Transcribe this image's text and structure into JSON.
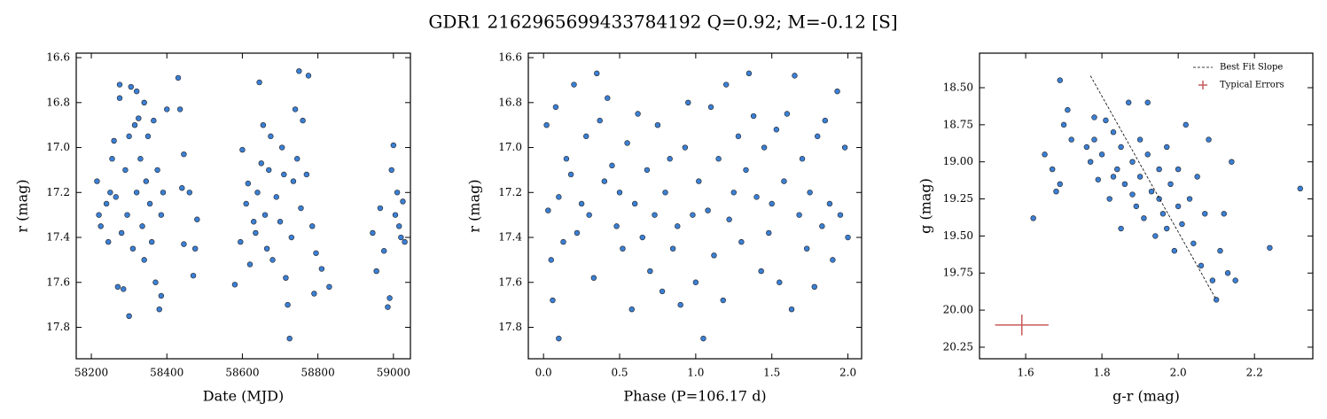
{
  "title": "GDR1 2162965699433784192  Q=0.92; M=-0.12 [S]",
  "chart_data": [
    {
      "type": "scatter",
      "xlabel": "Date (MJD)",
      "ylabel": "r (mag)",
      "color": "#3b7fd4",
      "xlim": [
        58160,
        59045
      ],
      "ylim": [
        17.94,
        16.58
      ],
      "xticks": [
        58200,
        58400,
        58600,
        58800,
        59000
      ],
      "yticks": [
        16.6,
        16.8,
        {
          "value": 17.0,
          "label": "17.0"
        },
        17.2,
        17.4,
        17.6,
        17.8
      ],
      "x": [
        58215,
        58220,
        58225,
        58240,
        58245,
        58250,
        58255,
        58260,
        58265,
        58270,
        58275,
        58275,
        58280,
        58285,
        58290,
        58295,
        58300,
        58300,
        58305,
        58310,
        58315,
        58320,
        58320,
        58325,
        58330,
        58335,
        58340,
        58340,
        58345,
        58350,
        58355,
        58360,
        58365,
        58370,
        58375,
        58380,
        58385,
        58385,
        58390,
        58400,
        58430,
        58435,
        58440,
        58445,
        58445,
        58460,
        58470,
        58475,
        58480,
        58580,
        58595,
        58600,
        58610,
        58615,
        58620,
        58630,
        58635,
        58640,
        58645,
        58650,
        58655,
        58660,
        58665,
        58670,
        58675,
        58680,
        58690,
        58700,
        58705,
        58710,
        58715,
        58720,
        58725,
        58730,
        58735,
        58740,
        58745,
        58750,
        58755,
        58760,
        58770,
        58775,
        58785,
        58790,
        58795,
        58810,
        58830,
        58945,
        58955,
        58965,
        58975,
        58985,
        58990,
        58995,
        59000,
        59005,
        59010,
        59015,
        59020,
        59025,
        59030
      ],
      "values": [
        17.15,
        17.3,
        17.35,
        17.25,
        17.42,
        17.2,
        17.05,
        16.97,
        17.22,
        17.62,
        16.78,
        16.72,
        17.38,
        17.63,
        17.1,
        17.3,
        17.75,
        16.95,
        16.73,
        17.45,
        16.9,
        16.75,
        17.2,
        16.87,
        17.05,
        17.35,
        16.8,
        17.5,
        17.15,
        16.95,
        17.25,
        17.42,
        16.88,
        17.6,
        17.1,
        17.72,
        17.66,
        17.3,
        17.2,
        16.83,
        16.69,
        16.83,
        17.18,
        17.03,
        17.43,
        17.2,
        17.57,
        17.45,
        17.32,
        17.61,
        17.42,
        17.01,
        17.25,
        17.16,
        17.52,
        17.33,
        17.38,
        17.2,
        16.71,
        17.07,
        16.9,
        17.3,
        17.45,
        17.1,
        16.95,
        17.5,
        17.22,
        17.33,
        17.0,
        17.12,
        17.58,
        17.7,
        17.85,
        17.4,
        17.15,
        16.83,
        17.05,
        16.66,
        17.27,
        16.88,
        17.12,
        16.68,
        17.35,
        17.65,
        17.47,
        17.54,
        17.62,
        17.38,
        17.55,
        17.27,
        17.46,
        17.71,
        17.67,
        17.1,
        16.99,
        17.3,
        17.2,
        17.35,
        17.4,
        17.24,
        17.42
      ]
    },
    {
      "type": "scatter",
      "xlabel": "Phase (P=106.17 d)",
      "ylabel": "r (mag)",
      "color": "#3b7fd4",
      "xlim": [
        -0.1,
        2.09
      ],
      "ylim": [
        17.94,
        16.58
      ],
      "xticks": [
        {
          "value": 0,
          "label": "0.0"
        },
        0.5,
        {
          "value": 1,
          "label": "1.0"
        },
        1.5,
        {
          "value": 2,
          "label": "2.0"
        }
      ],
      "yticks": [
        16.6,
        16.8,
        {
          "value": 17.0,
          "label": "17.0"
        },
        17.2,
        17.4,
        17.6,
        17.8
      ],
      "x": [
        0.02,
        0.03,
        0.05,
        0.06,
        0.08,
        0.1,
        0.1,
        0.13,
        0.15,
        0.18,
        0.2,
        0.22,
        0.25,
        0.28,
        0.3,
        0.33,
        0.35,
        0.37,
        0.4,
        0.42,
        0.45,
        0.48,
        0.5,
        0.52,
        0.55,
        0.58,
        0.6,
        0.62,
        0.65,
        0.68,
        0.7,
        0.73,
        0.75,
        0.78,
        0.8,
        0.83,
        0.85,
        0.88,
        0.9,
        0.93,
        0.95,
        0.98,
        1.0,
        1.02,
        1.05,
        1.08,
        1.1,
        1.12,
        1.15,
        1.18,
        1.2,
        1.22,
        1.25,
        1.28,
        1.3,
        1.33,
        1.35,
        1.38,
        1.4,
        1.43,
        1.45,
        1.48,
        1.5,
        1.53,
        1.55,
        1.58,
        1.6,
        1.63,
        1.65,
        1.68,
        1.7,
        1.73,
        1.75,
        1.78,
        1.8,
        1.83,
        1.85,
        1.88,
        1.9,
        1.93,
        1.95,
        1.98,
        2.0
      ],
      "values": [
        16.9,
        17.28,
        17.5,
        17.68,
        16.82,
        17.85,
        17.22,
        17.42,
        17.05,
        17.12,
        16.72,
        17.38,
        17.25,
        16.95,
        17.3,
        17.58,
        16.67,
        16.88,
        17.15,
        16.78,
        17.08,
        17.35,
        17.2,
        17.45,
        16.98,
        17.72,
        17.25,
        16.85,
        17.4,
        17.1,
        17.55,
        17.3,
        16.9,
        17.64,
        17.2,
        17.05,
        17.45,
        17.35,
        17.7,
        17.0,
        16.8,
        17.3,
        17.6,
        17.15,
        17.85,
        17.28,
        16.82,
        17.48,
        17.05,
        17.68,
        16.72,
        17.32,
        17.2,
        16.95,
        17.42,
        17.1,
        16.67,
        16.86,
        17.22,
        17.55,
        17.0,
        17.38,
        17.25,
        16.92,
        17.6,
        17.15,
        16.85,
        17.72,
        16.68,
        17.3,
        17.05,
        17.45,
        17.2,
        17.62,
        16.95,
        17.35,
        16.88,
        17.25,
        17.5,
        16.75,
        17.3,
        17.0,
        17.4
      ]
    },
    {
      "type": "scatter",
      "xlabel": "g-r (mag)",
      "ylabel": "g (mag)",
      "color": "#3b7fd4",
      "xlim": [
        1.479,
        2.353
      ],
      "ylim": [
        20.328,
        18.267
      ],
      "xticks": [
        1.6,
        1.8,
        {
          "value": 2.0,
          "label": "2.0"
        },
        2.2
      ],
      "yticks": [
        {
          "value": 18.5,
          "label": "18.50"
        },
        18.75,
        {
          "value": 19.0,
          "label": "19.00"
        },
        19.25,
        {
          "value": 19.5,
          "label": "19.50"
        },
        19.75,
        {
          "value": 20.0,
          "label": "20.00"
        },
        20.25
      ],
      "x": [
        1.62,
        1.65,
        1.67,
        1.68,
        1.69,
        1.7,
        1.71,
        1.69,
        1.76,
        1.77,
        1.78,
        1.79,
        1.8,
        1.81,
        1.82,
        1.83,
        1.84,
        1.85,
        1.85,
        1.86,
        1.87,
        1.88,
        1.89,
        1.9,
        1.9,
        1.91,
        1.92,
        1.93,
        1.94,
        1.95,
        1.95,
        1.96,
        1.97,
        1.98,
        1.99,
        2.0,
        2.0,
        2.01,
        2.02,
        2.03,
        2.04,
        2.05,
        2.06,
        2.07,
        2.08,
        2.09,
        2.1,
        2.11,
        2.12,
        2.13,
        2.14,
        2.15,
        2.24,
        2.32,
        1.72,
        1.78,
        1.83,
        1.88,
        1.92,
        1.97
      ],
      "values": [
        19.38,
        18.95,
        19.05,
        19.2,
        18.45,
        18.75,
        18.65,
        19.15,
        18.9,
        19.0,
        18.85,
        19.12,
        18.95,
        18.72,
        19.25,
        18.8,
        19.05,
        18.9,
        19.45,
        19.15,
        18.6,
        19.0,
        19.3,
        18.85,
        19.1,
        19.38,
        18.95,
        19.2,
        19.5,
        19.05,
        19.25,
        19.35,
        18.9,
        19.15,
        19.6,
        19.3,
        19.05,
        19.42,
        18.75,
        19.25,
        19.55,
        19.1,
        19.7,
        19.35,
        18.85,
        19.8,
        19.93,
        19.6,
        19.35,
        19.75,
        19.0,
        19.8,
        19.58,
        19.18,
        18.85,
        18.7,
        19.1,
        19.22,
        18.6,
        19.45
      ],
      "fit_line": {
        "name": "Best Fit Slope",
        "x": [
          1.77,
          2.1
        ],
        "values": [
          18.42,
          19.93
        ]
      },
      "error_bar": {
        "name": "Typical Errors",
        "color": "#c85a5a",
        "x": 1.59,
        "value": 20.1,
        "xerr": 0.07,
        "yerr": 0.07
      },
      "legend": "upper right"
    }
  ]
}
